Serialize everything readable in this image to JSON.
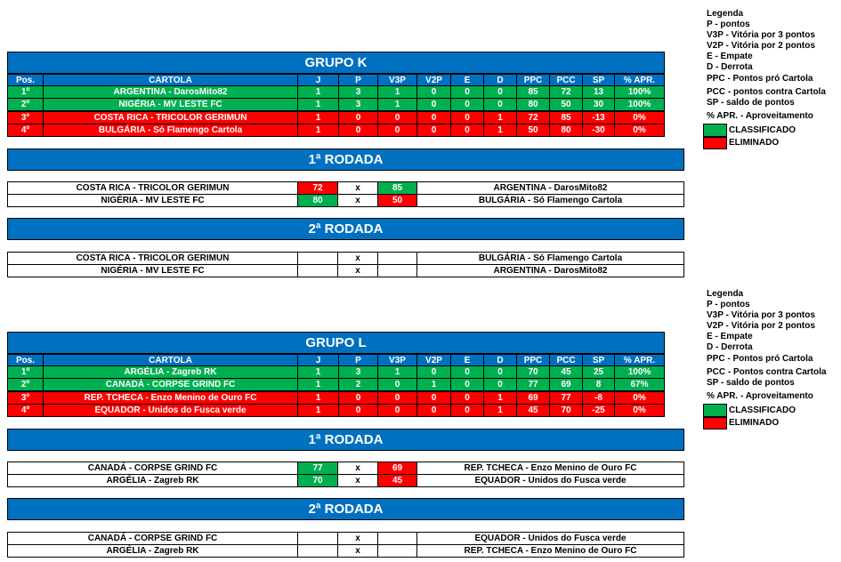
{
  "groups": [
    {
      "title": "GRUPO K",
      "header": [
        "Pos.",
        "CARTOLA",
        "J",
        "P",
        "V3P",
        "V2P",
        "E",
        "D",
        "PPC",
        "PCC",
        "SP",
        "% APR."
      ],
      "rows": [
        [
          "1º",
          "ARGENTINA - DarosMito82",
          "1",
          "3",
          "1",
          "0",
          "0",
          "0",
          "85",
          "72",
          "13",
          "100%"
        ],
        [
          "2º",
          "NIGÉRIA  - MV LESTE FC",
          "1",
          "3",
          "1",
          "0",
          "0",
          "0",
          "80",
          "50",
          "30",
          "100%"
        ],
        [
          "3º",
          "COSTA RICA - TRICOLOR GERIMUN",
          "1",
          "0",
          "0",
          "0",
          "0",
          "1",
          "72",
          "85",
          "-13",
          "0%"
        ],
        [
          "4º",
          "BULGÁRIA - Só Flamengo Cartola",
          "1",
          "0",
          "0",
          "0",
          "0",
          "1",
          "50",
          "80",
          "-30",
          "0%"
        ]
      ],
      "row_colors": [
        "#00b050",
        "#00b050",
        "#ff0000",
        "#ff0000"
      ],
      "rounds": [
        {
          "title": "1ª RODADA",
          "matches": [
            {
              "home": "COSTA RICA - TRICOLOR GERIMUN",
              "home_score": 72,
              "home_color": "#ff0000",
              "sep": "x",
              "away_score": 85,
              "away_color": "#00b050",
              "away": "ARGENTINA - DarosMito82"
            },
            {
              "home": "NIGÉRIA  - MV LESTE FC",
              "home_score": 80,
              "home_color": "#00b050",
              "sep": "x",
              "away_score": 50,
              "away_color": "#ff0000",
              "away": "BULGÁRIA - Só Flamengo Cartola"
            }
          ]
        },
        {
          "title": "2ª RODADA",
          "matches": [
            {
              "home": "COSTA RICA - TRICOLOR GERIMUN",
              "sep": "x",
              "away": "BULGÁRIA - Só Flamengo Cartola"
            },
            {
              "home": "NIGÉRIA  - MV LESTE FC",
              "sep": "x",
              "away": "ARGENTINA - DarosMito82"
            }
          ]
        }
      ],
      "legend": {
        "items": [
          "Legenda",
          "P - pontos",
          "V3P - Vitória por 3 pontos",
          "V2P - Vitória por 2 pontos",
          "E - Empate",
          "D - Derrota",
          "PPC - Pontos pró Cartola",
          "PCC - pontos contra Cartola",
          "SP - saldo de pontos",
          "% APR. - Aproveitamento"
        ],
        "classified": "CLASSIFICADO",
        "eliminated": "ELIMINADO"
      }
    },
    {
      "title": "GRUPO L",
      "header": [
        "Pos.",
        "CARTOLA",
        "J",
        "P",
        "V3P",
        "V2P",
        "E",
        "D",
        "PPC",
        "PCC",
        "SP",
        "% APR."
      ],
      "rows": [
        [
          "1º",
          "ARGÉLIA - Zagreb RK",
          "1",
          "3",
          "1",
          "0",
          "0",
          "0",
          "70",
          "45",
          "25",
          "100%"
        ],
        [
          "2º",
          "CANADÁ - CORPSE GRIND FC",
          "1",
          "2",
          "0",
          "1",
          "0",
          "0",
          "77",
          "69",
          "8",
          "67%"
        ],
        [
          "3º",
          "REP. TCHECA - Enzo Menino de Ouro FC",
          "1",
          "0",
          "0",
          "0",
          "0",
          "1",
          "69",
          "77",
          "-8",
          "0%"
        ],
        [
          "4º",
          "EQUADOR - Unidos do Fusca verde",
          "1",
          "0",
          "0",
          "0",
          "0",
          "1",
          "45",
          "70",
          "-25",
          "0%"
        ]
      ],
      "row_colors": [
        "#00b050",
        "#00b050",
        "#ff0000",
        "#ff0000"
      ],
      "rounds": [
        {
          "title": "1ª RODADA",
          "matches": [
            {
              "home": "CANADÁ - CORPSE GRIND FC",
              "home_score": 77,
              "home_color": "#00b050",
              "sep": "x",
              "away_score": 69,
              "away_color": "#ff0000",
              "away": "REP. TCHECA - Enzo Menino de Ouro FC"
            },
            {
              "home": "ARGÉLIA - Zagreb RK",
              "home_score": 70,
              "home_color": "#00b050",
              "sep": "x",
              "away_score": 45,
              "away_color": "#ff0000",
              "away": "EQUADOR - Unidos do Fusca verde"
            }
          ]
        },
        {
          "title": "2ª RODADA",
          "matches": [
            {
              "home": "CANADÁ - CORPSE GRIND FC",
              "sep": "x",
              "away": "EQUADOR - Unidos do Fusca verde"
            },
            {
              "home": "ARGÉLIA - Zagreb RK",
              "sep": "x",
              "away": "REP. TCHECA - Enzo Menino de Ouro FC"
            }
          ]
        }
      ],
      "legend": {
        "items": [
          "Legenda",
          "P - pontos",
          "V3P - Vitória por 3 pontos",
          "V2P - Vitória por 2 pontos",
          "E - Empate",
          "D - Derrota",
          "PPC - Pontos pró Cartola",
          "PCC - Pontos contra Cartola",
          "SP - saldo de pontos",
          "% APR. - Aproveitamento"
        ],
        "classified": "CLASSIFICADO",
        "eliminated": "ELIMINADO"
      }
    }
  ]
}
